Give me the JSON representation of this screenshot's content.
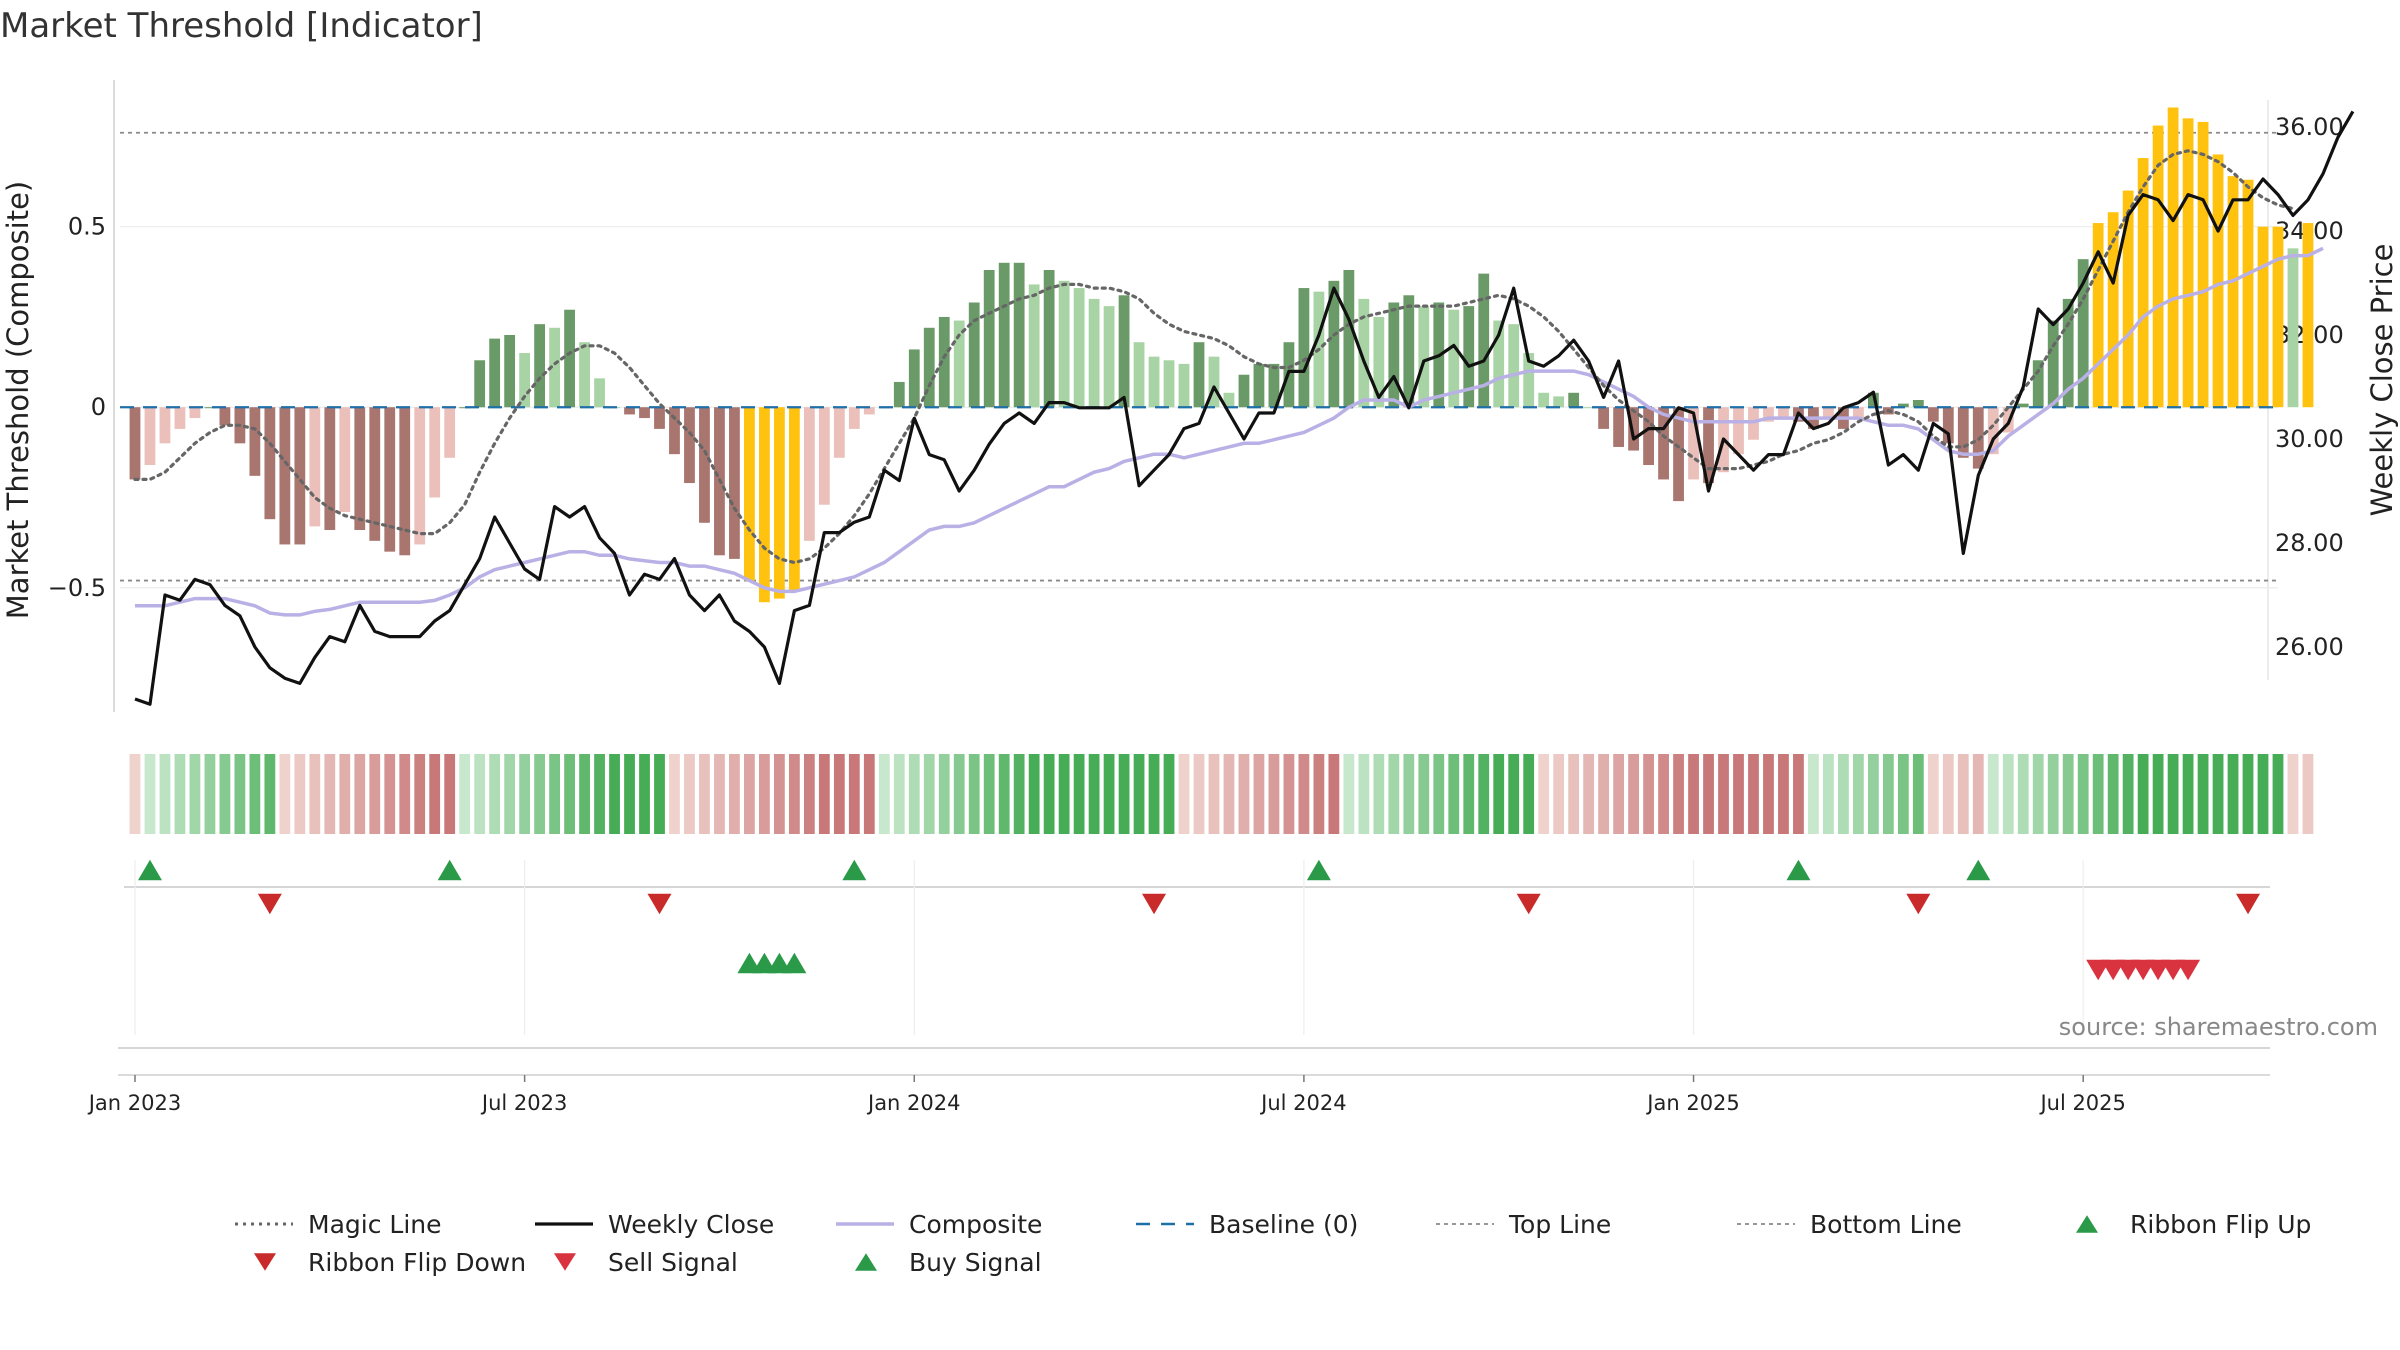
{
  "page": {
    "title": "Market Threshold [Indicator]",
    "source": "source: sharemaestro.com"
  },
  "chart_data": {
    "type": "line",
    "title": "Market Threshold [Indicator]",
    "ylabel_left": "Market Threshold (Composite)",
    "ylabel_right": "Weekly Close Price",
    "ylim_left": [
      -0.88,
      0.92
    ],
    "ylim_right": [
      24.5,
      37.0
    ],
    "left_ticks": [
      {
        "v": 0.5,
        "label": "0.5"
      },
      {
        "v": 0,
        "label": "0"
      },
      {
        "v": -0.5,
        "label": "−0.5"
      }
    ],
    "right_ticks": [
      {
        "v": 36,
        "label": "36.00"
      },
      {
        "v": 34,
        "label": "34.00"
      },
      {
        "v": 32,
        "label": "32.00"
      },
      {
        "v": 30,
        "label": "30.00"
      },
      {
        "v": 28,
        "label": "28.00"
      },
      {
        "v": 26,
        "label": "26.00"
      }
    ],
    "x_ticks": [
      "Jan 2023",
      "Jul 2023",
      "Jan 2024",
      "Jul 2024",
      "Jan 2025",
      "Jul 2025"
    ],
    "x_range_weeks": [
      -1,
      143
    ],
    "top_line": 0.76,
    "bottom_line": -0.48,
    "colors": {
      "strong_pos": "#6a9a67",
      "weak_pos": "#a8d3a4",
      "strong_neg": "#a8756f",
      "weak_neg": "#ebbfba",
      "extreme": "#ffc20e",
      "close": "#111111",
      "composite": "#b9b0e6",
      "magic": "#666666",
      "baseline": "#1f6fa8",
      "up": "#2a9a48",
      "down": "#d93340"
    },
    "histogram": [
      -0.2,
      -0.16,
      -0.1,
      -0.06,
      -0.03,
      0,
      -0.05,
      -0.1,
      -0.19,
      -0.31,
      -0.38,
      -0.38,
      -0.33,
      -0.34,
      -0.29,
      -0.34,
      -0.37,
      -0.4,
      -0.41,
      -0.38,
      -0.25,
      -0.14,
      0,
      0.13,
      0.19,
      0.2,
      0.15,
      0.23,
      0.22,
      0.27,
      0.18,
      0.08,
      0,
      -0.02,
      -0.03,
      -0.06,
      -0.13,
      -0.21,
      -0.32,
      -0.41,
      -0.42,
      -0.48,
      -0.54,
      -0.53,
      -0.51,
      -0.37,
      -0.27,
      -0.14,
      -0.06,
      -0.02,
      0,
      0.07,
      0.16,
      0.22,
      0.25,
      0.24,
      0.29,
      0.38,
      0.4,
      0.4,
      0.34,
      0.38,
      0.35,
      0.33,
      0.3,
      0.28,
      0.31,
      0.18,
      0.14,
      0.13,
      0.12,
      0.18,
      0.14,
      0.04,
      0.09,
      0.12,
      0.12,
      0.18,
      0.33,
      0.32,
      0.35,
      0.38,
      0.3,
      0.25,
      0.29,
      0.31,
      0.28,
      0.29,
      0.27,
      0.28,
      0.37,
      0.24,
      0.23,
      0.15,
      0.04,
      0.03,
      0.04,
      0,
      -0.06,
      -0.11,
      -0.12,
      -0.16,
      -0.2,
      -0.26,
      -0.2,
      -0.21,
      -0.18,
      -0.13,
      -0.09,
      -0.04,
      -0.03,
      -0.04,
      -0.06,
      -0.03,
      -0.06,
      -0.03,
      0.04,
      -0.02,
      0.01,
      0.02,
      -0.04,
      -0.1,
      -0.14,
      -0.17,
      -0.13,
      -0.07,
      0.01,
      0.13,
      0.24,
      0.3,
      0.41,
      0.51,
      0.54,
      0.6,
      0.69,
      0.78,
      0.83,
      0.8,
      0.79,
      0.7,
      0.64,
      0.63,
      0.5,
      0.5,
      0.44,
      0.51
    ],
    "weekly_close": [
      25.0,
      24.9,
      27.0,
      26.9,
      27.3,
      27.2,
      26.8,
      26.6,
      26.0,
      25.6,
      25.4,
      25.3,
      25.8,
      26.2,
      26.1,
      26.8,
      26.3,
      26.2,
      26.2,
      26.2,
      26.5,
      26.7,
      27.2,
      27.7,
      28.5,
      28.0,
      27.5,
      27.3,
      28.7,
      28.5,
      28.7,
      28.1,
      27.8,
      27.0,
      27.4,
      27.3,
      27.7,
      27.0,
      26.7,
      27.0,
      26.5,
      26.3,
      26.0,
      25.3,
      26.7,
      26.8,
      28.2,
      28.2,
      28.4,
      28.5,
      29.4,
      29.2,
      30.4,
      29.7,
      29.6,
      29.0,
      29.4,
      29.9,
      30.3,
      30.5,
      30.3,
      30.7,
      30.7,
      30.6,
      30.6,
      30.6,
      30.8,
      29.1,
      29.4,
      29.7,
      30.2,
      30.3,
      31.0,
      30.5,
      30.0,
      30.5,
      30.5,
      31.3,
      31.3,
      32.0,
      32.9,
      32.3,
      31.5,
      30.8,
      31.2,
      30.6,
      31.5,
      31.6,
      31.8,
      31.4,
      31.5,
      32.0,
      32.9,
      31.5,
      31.4,
      31.6,
      31.9,
      31.5,
      30.8,
      31.5,
      30.0,
      30.2,
      30.2,
      30.6,
      30.5,
      29.0,
      30.0,
      29.7,
      29.4,
      29.7,
      29.7,
      30.5,
      30.2,
      30.3,
      30.6,
      30.7,
      30.9,
      29.5,
      29.7,
      29.4,
      30.3,
      30.1,
      27.8,
      29.3,
      30.0,
      30.3,
      31.0,
      32.5,
      32.2,
      32.5,
      33.0,
      33.6,
      33.0,
      34.3,
      34.7,
      34.6,
      34.2,
      34.7,
      34.6,
      34.0,
      34.6,
      34.6,
      35.0,
      34.7,
      34.3,
      34.6,
      35.1,
      35.8,
      36.3
    ],
    "composite": [
      -0.55,
      -0.55,
      -0.55,
      -0.54,
      -0.53,
      -0.53,
      -0.53,
      -0.54,
      -0.55,
      -0.57,
      -0.575,
      -0.575,
      -0.565,
      -0.56,
      -0.55,
      -0.54,
      -0.54,
      -0.54,
      -0.54,
      -0.54,
      -0.535,
      -0.52,
      -0.5,
      -0.47,
      -0.45,
      -0.44,
      -0.43,
      -0.42,
      -0.41,
      -0.4,
      -0.4,
      -0.41,
      -0.41,
      -0.42,
      -0.425,
      -0.43,
      -0.43,
      -0.44,
      -0.44,
      -0.45,
      -0.46,
      -0.48,
      -0.5,
      -0.51,
      -0.51,
      -0.5,
      -0.49,
      -0.48,
      -0.47,
      -0.45,
      -0.43,
      -0.4,
      -0.37,
      -0.34,
      -0.33,
      -0.33,
      -0.32,
      -0.3,
      -0.28,
      -0.26,
      -0.24,
      -0.22,
      -0.22,
      -0.2,
      -0.18,
      -0.17,
      -0.15,
      -0.14,
      -0.13,
      -0.13,
      -0.14,
      -0.13,
      -0.12,
      -0.11,
      -0.1,
      -0.1,
      -0.09,
      -0.08,
      -0.07,
      -0.05,
      -0.03,
      0.0,
      0.02,
      0.02,
      0.02,
      0.0,
      0.02,
      0.03,
      0.04,
      0.05,
      0.06,
      0.08,
      0.09,
      0.1,
      0.1,
      0.1,
      0.1,
      0.09,
      0.07,
      0.05,
      0.03,
      0.0,
      -0.02,
      -0.03,
      -0.04,
      -0.04,
      -0.04,
      -0.04,
      -0.04,
      -0.03,
      -0.03,
      -0.03,
      -0.03,
      -0.03,
      -0.03,
      -0.03,
      -0.04,
      -0.05,
      -0.05,
      -0.06,
      -0.09,
      -0.12,
      -0.13,
      -0.13,
      -0.12,
      -0.08,
      -0.05,
      -0.02,
      0.01,
      0.05,
      0.08,
      0.12,
      0.16,
      0.2,
      0.25,
      0.28,
      0.3,
      0.31,
      0.32,
      0.34,
      0.35,
      0.37,
      0.39,
      0.41,
      0.42,
      0.42,
      0.44
    ],
    "magic_line": [
      -0.2,
      -0.2,
      -0.18,
      -0.14,
      -0.1,
      -0.07,
      -0.05,
      -0.05,
      -0.06,
      -0.1,
      -0.15,
      -0.2,
      -0.25,
      -0.28,
      -0.3,
      -0.31,
      -0.32,
      -0.33,
      -0.34,
      -0.35,
      -0.35,
      -0.32,
      -0.27,
      -0.18,
      -0.1,
      -0.03,
      0.03,
      0.08,
      0.12,
      0.15,
      0.17,
      0.17,
      0.15,
      0.11,
      0.06,
      0.01,
      -0.03,
      -0.07,
      -0.12,
      -0.2,
      -0.28,
      -0.34,
      -0.39,
      -0.42,
      -0.43,
      -0.42,
      -0.39,
      -0.35,
      -0.3,
      -0.24,
      -0.17,
      -0.1,
      -0.03,
      0.06,
      0.14,
      0.2,
      0.24,
      0.26,
      0.28,
      0.3,
      0.31,
      0.33,
      0.34,
      0.34,
      0.33,
      0.33,
      0.32,
      0.3,
      0.26,
      0.23,
      0.21,
      0.2,
      0.19,
      0.17,
      0.14,
      0.12,
      0.11,
      0.11,
      0.13,
      0.16,
      0.2,
      0.23,
      0.25,
      0.26,
      0.27,
      0.28,
      0.28,
      0.28,
      0.28,
      0.29,
      0.3,
      0.31,
      0.3,
      0.28,
      0.25,
      0.21,
      0.16,
      0.11,
      0.06,
      0.02,
      -0.01,
      -0.04,
      -0.08,
      -0.11,
      -0.14,
      -0.17,
      -0.17,
      -0.17,
      -0.16,
      -0.15,
      -0.13,
      -0.12,
      -0.1,
      -0.09,
      -0.07,
      -0.04,
      -0.02,
      -0.01,
      -0.02,
      -0.04,
      -0.08,
      -0.11,
      -0.11,
      -0.09,
      -0.05,
      0.0,
      0.05,
      0.1,
      0.17,
      0.23,
      0.3,
      0.38,
      0.46,
      0.54,
      0.61,
      0.67,
      0.7,
      0.71,
      0.7,
      0.68,
      0.65,
      0.61,
      0.58,
      0.56,
      0.55
    ],
    "ribbon": [
      -1,
      1,
      1,
      1,
      1,
      1,
      1,
      1,
      1,
      1,
      -1,
      -1,
      -1,
      -1,
      -1,
      -1,
      -1,
      -1,
      -1,
      -1,
      -1,
      -1,
      1,
      1,
      1,
      1,
      1,
      1,
      1,
      1,
      1,
      1,
      1,
      1,
      1,
      1,
      -1,
      -1,
      -1,
      -1,
      -1,
      -1,
      -1,
      -1,
      -1,
      -1,
      -1,
      -1,
      -1,
      -1,
      1,
      1,
      1,
      1,
      1,
      1,
      1,
      1,
      1,
      1,
      1,
      1,
      1,
      1,
      1,
      1,
      1,
      1,
      1,
      1,
      -1,
      -1,
      -1,
      -1,
      -1,
      -1,
      -1,
      -1,
      -1,
      -1,
      -1,
      1,
      1,
      1,
      1,
      1,
      1,
      1,
      1,
      1,
      1,
      1,
      1,
      1,
      -1,
      -1,
      -1,
      -1,
      -1,
      -1,
      -1,
      -1,
      -1,
      -1,
      -1,
      -1,
      -1,
      -1,
      -1,
      -1,
      -1,
      -1,
      1,
      1,
      1,
      1,
      1,
      1,
      1,
      1,
      -1,
      -1,
      -1,
      -1,
      1,
      1,
      1,
      1,
      1,
      1,
      1,
      1,
      1,
      1,
      1,
      1,
      1,
      1,
      1,
      1,
      1,
      1,
      1,
      1,
      -1,
      -1
    ],
    "ribbon_flip_up_weeks": [
      1,
      21,
      48,
      79,
      111,
      123
    ],
    "ribbon_flip_down_weeks": [
      9,
      35,
      68,
      93,
      119,
      141
    ],
    "buy_signal_weeks": [
      41,
      42,
      43,
      44
    ],
    "sell_signal_weeks": [
      131,
      132,
      133,
      134,
      135,
      136,
      137
    ],
    "legend": [
      {
        "label": "Magic Line",
        "kind": "dotted"
      },
      {
        "label": "Weekly Close",
        "kind": "solid"
      },
      {
        "label": "Composite",
        "kind": "composite"
      },
      {
        "label": "Baseline (0)",
        "kind": "dashed"
      },
      {
        "label": "Top Line",
        "kind": "fine-dash"
      },
      {
        "label": "Bottom Line",
        "kind": "fine-dash"
      },
      {
        "label": "Ribbon Flip Up",
        "kind": "tri-up"
      },
      {
        "label": "Ribbon Flip Down",
        "kind": "tri-down-dark"
      },
      {
        "label": "Sell Signal",
        "kind": "tri-down"
      },
      {
        "label": "Buy Signal",
        "kind": "tri-up"
      }
    ]
  }
}
